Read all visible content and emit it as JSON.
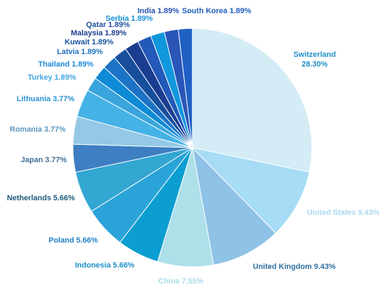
{
  "chart_data": {
    "type": "pie",
    "title": "",
    "start_angle_deg": 0,
    "direction": "clockwise",
    "slices": [
      {
        "label": "Switzerland",
        "value": 28.3,
        "display": "28.30%",
        "color": "#d4ecf5",
        "label_color": "#1f8fc7",
        "label_lines": 2
      },
      {
        "label": "United States",
        "value": 9.43,
        "display": "9.43%",
        "color": "#a6dcf5",
        "label_color": "#a9d9f0",
        "label_lines": 1
      },
      {
        "label": "United Kingdom",
        "value": 9.43,
        "display": "9.43%",
        "color": "#8ec2e6",
        "label_color": "#2f6f9f",
        "label_lines": 1
      },
      {
        "label": "China",
        "value": 7.55,
        "display": "7.55%",
        "color": "#aee0ea",
        "label_color": "#a9dcea",
        "label_lines": 1
      },
      {
        "label": "Indonesia",
        "value": 5.66,
        "display": "5.66%",
        "color": "#0c9ed1",
        "label_color": "#1a8fc9",
        "label_lines": 1
      },
      {
        "label": "Poland",
        "value": 5.66,
        "display": "5.66%",
        "color": "#2aa3d8",
        "label_color": "#1f7fc4",
        "label_lines": 1
      },
      {
        "label": "Netherlands",
        "value": 5.66,
        "display": "5.66%",
        "color": "#33a6d2",
        "label_color": "#1c5a7c",
        "label_lines": 1
      },
      {
        "label": "Japan",
        "value": 3.77,
        "display": "3.77%",
        "color": "#3d7fc2",
        "label_color": "#3f6e99",
        "label_lines": 1
      },
      {
        "label": "Romania",
        "value": 3.77,
        "display": "3.77%",
        "color": "#94c8e6",
        "label_color": "#5c97c2",
        "label_lines": 1
      },
      {
        "label": "Lithuania",
        "value": 3.77,
        "display": "3.77%",
        "color": "#45b2e6",
        "label_color": "#2b93d2",
        "label_lines": 1
      },
      {
        "label": "Turkey",
        "value": 1.89,
        "display": "1.89%",
        "color": "#3aa5dc",
        "label_color": "#42a7df",
        "label_lines": 1
      },
      {
        "label": "Thailand",
        "value": 1.89,
        "display": "1.89%",
        "color": "#0e8ad6",
        "label_color": "#1c8ad6",
        "label_lines": 1
      },
      {
        "label": "Latvia",
        "value": 1.89,
        "display": "1.89%",
        "color": "#1d73c6",
        "label_color": "#1e72c4",
        "label_lines": 1
      },
      {
        "label": "Kuwait",
        "value": 1.89,
        "display": "1.89%",
        "color": "#174f9c",
        "label_color": "#17559e",
        "label_lines": 1
      },
      {
        "label": "Malaysia",
        "value": 1.89,
        "display": "1.89%",
        "color": "#1b3d8f",
        "label_color": "#1b3f90",
        "label_lines": 1
      },
      {
        "label": "Qatar",
        "value": 1.89,
        "display": "1.89%",
        "color": "#2359b8",
        "label_color": "#214f9e",
        "label_lines": 1
      },
      {
        "label": "Serbia",
        "value": 1.89,
        "display": "1.89%",
        "color": "#1097dc",
        "label_color": "#1590d5",
        "label_lines": 1
      },
      {
        "label": "India",
        "value": 1.89,
        "display": "1.89%",
        "color": "#2a56b8",
        "label_color": "#2751b2",
        "label_lines": 1
      },
      {
        "label": "South Korea",
        "value": 1.89,
        "display": "1.89%",
        "color": "#1f60c4",
        "label_color": "#1f5fc0",
        "label_lines": 1
      }
    ]
  }
}
